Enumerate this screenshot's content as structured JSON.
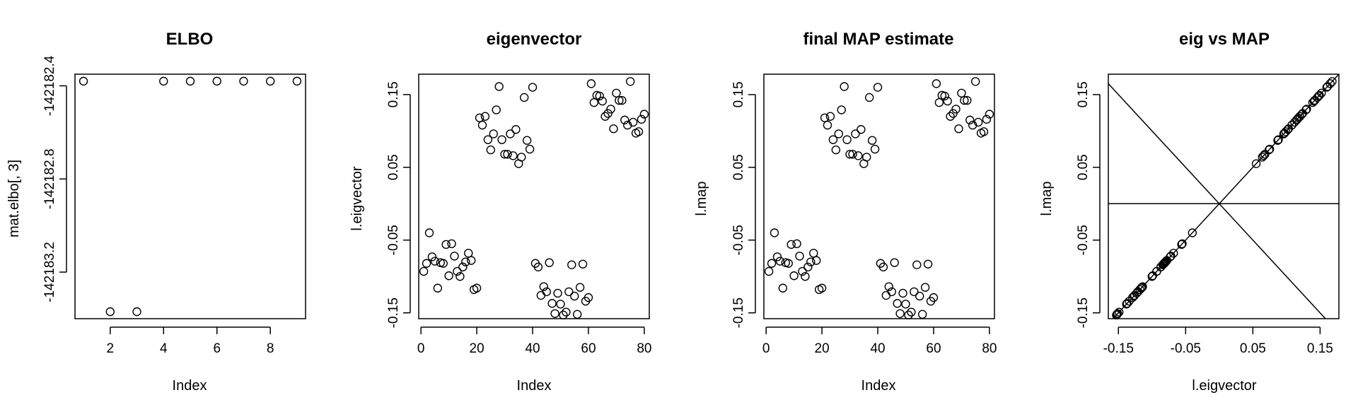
{
  "chart_data": [
    {
      "type": "scatter",
      "title": "ELBO",
      "xlabel": "Index",
      "ylabel": "mat.elbo[, 3]",
      "xlim": [
        0.68,
        9.32
      ],
      "ylim": [
        -142183.4,
        -142182.35
      ],
      "xticks": [
        2,
        4,
        6,
        8
      ],
      "xtick_labels": [
        "2",
        "4",
        "6",
        "8"
      ],
      "yticks": [
        -142183.2,
        -142182.8,
        -142182.4
      ],
      "ytick_labels": [
        "-142183.2",
        "-142182.8",
        "-142182.4"
      ],
      "x": [
        1,
        2,
        3,
        4,
        5,
        6,
        7,
        8,
        9
      ],
      "y": [
        -142182.38,
        -142183.37,
        -142183.37,
        -142182.38,
        -142182.38,
        -142182.38,
        -142182.38,
        -142182.38,
        -142182.38
      ]
    },
    {
      "type": "scatter",
      "title": "eigenvector",
      "xlabel": "Index",
      "ylabel": "l.eigvector",
      "xlim": [
        -0.8,
        81.8
      ],
      "ylim": [
        -0.158,
        0.178
      ],
      "xticks": [
        0,
        20,
        40,
        60,
        80
      ],
      "xtick_labels": [
        "0",
        "20",
        "40",
        "60",
        "80"
      ],
      "yticks": [
        -0.15,
        -0.05,
        0.05,
        0.15
      ],
      "ytick_labels": [
        "-0.15",
        "-0.05",
        "0.05",
        "0.15"
      ],
      "x": [
        1,
        2,
        3,
        4,
        5,
        6,
        7,
        8,
        9,
        10,
        11,
        12,
        13,
        14,
        15,
        16,
        17,
        18,
        19,
        20,
        21,
        22,
        23,
        24,
        25,
        26,
        27,
        28,
        29,
        30,
        31,
        32,
        33,
        34,
        35,
        36,
        37,
        38,
        39,
        40,
        41,
        42,
        43,
        44,
        45,
        46,
        47,
        48,
        49,
        50,
        51,
        52,
        53,
        54,
        55,
        56,
        57,
        58,
        59,
        60,
        61,
        62,
        63,
        64,
        65,
        66,
        67,
        68,
        69,
        70,
        71,
        72,
        73,
        74,
        75,
        76,
        77,
        78,
        79,
        80
      ],
      "y": [
        -0.093,
        -0.082,
        -0.04,
        -0.073,
        -0.079,
        -0.116,
        -0.081,
        -0.082,
        -0.056,
        -0.099,
        -0.055,
        -0.072,
        -0.093,
        -0.1,
        -0.087,
        -0.08,
        -0.068,
        -0.078,
        -0.118,
        -0.116,
        0.118,
        0.108,
        0.12,
        0.088,
        0.074,
        0.096,
        0.129,
        0.161,
        0.088,
        0.068,
        0.068,
        0.096,
        0.066,
        0.102,
        0.055,
        0.064,
        0.146,
        0.087,
        0.075,
        0.16,
        -0.082,
        -0.087,
        -0.126,
        -0.114,
        -0.121,
        -0.081,
        -0.137,
        -0.151,
        -0.123,
        -0.138,
        -0.153,
        -0.149,
        -0.121,
        -0.084,
        -0.127,
        -0.152,
        -0.115,
        -0.083,
        -0.134,
        -0.129,
        0.165,
        0.139,
        0.149,
        0.148,
        0.141,
        0.12,
        0.124,
        0.13,
        0.103,
        0.152,
        0.142,
        0.142,
        0.115,
        0.108,
        0.168,
        0.112,
        0.097,
        0.099,
        0.116,
        0.123
      ]
    },
    {
      "type": "scatter",
      "title": "final MAP estimate",
      "xlabel": "Index",
      "ylabel": "l.map",
      "xlim": [
        -0.8,
        81.8
      ],
      "ylim": [
        -0.158,
        0.178
      ],
      "xticks": [
        0,
        20,
        40,
        60,
        80
      ],
      "xtick_labels": [
        "0",
        "20",
        "40",
        "60",
        "80"
      ],
      "yticks": [
        -0.15,
        -0.05,
        0.05,
        0.15
      ],
      "ytick_labels": [
        "-0.15",
        "-0.05",
        "0.05",
        "0.15"
      ],
      "x": [
        1,
        2,
        3,
        4,
        5,
        6,
        7,
        8,
        9,
        10,
        11,
        12,
        13,
        14,
        15,
        16,
        17,
        18,
        19,
        20,
        21,
        22,
        23,
        24,
        25,
        26,
        27,
        28,
        29,
        30,
        31,
        32,
        33,
        34,
        35,
        36,
        37,
        38,
        39,
        40,
        41,
        42,
        43,
        44,
        45,
        46,
        47,
        48,
        49,
        50,
        51,
        52,
        53,
        54,
        55,
        56,
        57,
        58,
        59,
        60,
        61,
        62,
        63,
        64,
        65,
        66,
        67,
        68,
        69,
        70,
        71,
        72,
        73,
        74,
        75,
        76,
        77,
        78,
        79,
        80
      ],
      "y": [
        -0.093,
        -0.082,
        -0.04,
        -0.073,
        -0.079,
        -0.116,
        -0.081,
        -0.082,
        -0.056,
        -0.099,
        -0.055,
        -0.072,
        -0.093,
        -0.1,
        -0.087,
        -0.08,
        -0.068,
        -0.078,
        -0.118,
        -0.116,
        0.118,
        0.108,
        0.12,
        0.088,
        0.074,
        0.096,
        0.129,
        0.161,
        0.088,
        0.068,
        0.068,
        0.096,
        0.066,
        0.102,
        0.055,
        0.064,
        0.146,
        0.087,
        0.075,
        0.16,
        -0.082,
        -0.087,
        -0.126,
        -0.114,
        -0.121,
        -0.081,
        -0.137,
        -0.151,
        -0.123,
        -0.138,
        -0.153,
        -0.149,
        -0.121,
        -0.084,
        -0.127,
        -0.152,
        -0.115,
        -0.083,
        -0.134,
        -0.129,
        0.165,
        0.139,
        0.149,
        0.148,
        0.141,
        0.12,
        0.124,
        0.13,
        0.103,
        0.152,
        0.142,
        0.142,
        0.115,
        0.108,
        0.168,
        0.112,
        0.097,
        0.099,
        0.116,
        0.123
      ]
    },
    {
      "type": "scatter",
      "title": "eig vs MAP",
      "xlabel": "l.eigvector",
      "ylabel": "l.map",
      "xlim": [
        -0.165,
        0.178
      ],
      "ylim": [
        -0.158,
        0.178
      ],
      "xticks": [
        -0.15,
        -0.05,
        0.05,
        0.15
      ],
      "xtick_labels": [
        "-0.15",
        "-0.05",
        "0.05",
        "0.15"
      ],
      "yticks": [
        -0.15,
        -0.05,
        0.05,
        0.15
      ],
      "ytick_labels": [
        "-0.15",
        "-0.05",
        "0.05",
        "0.15"
      ],
      "x": [
        -0.093,
        -0.082,
        -0.04,
        -0.073,
        -0.079,
        -0.116,
        -0.081,
        -0.082,
        -0.056,
        -0.099,
        -0.055,
        -0.072,
        -0.093,
        -0.1,
        -0.087,
        -0.08,
        -0.068,
        -0.078,
        -0.118,
        -0.116,
        0.118,
        0.108,
        0.12,
        0.088,
        0.074,
        0.096,
        0.129,
        0.161,
        0.088,
        0.068,
        0.068,
        0.096,
        0.066,
        0.102,
        0.055,
        0.064,
        0.146,
        0.087,
        0.075,
        0.16,
        -0.082,
        -0.087,
        -0.126,
        -0.114,
        -0.121,
        -0.081,
        -0.137,
        -0.151,
        -0.123,
        -0.138,
        -0.153,
        -0.149,
        -0.121,
        -0.084,
        -0.127,
        -0.152,
        -0.115,
        -0.083,
        -0.134,
        -0.129,
        0.165,
        0.139,
        0.149,
        0.148,
        0.141,
        0.12,
        0.124,
        0.13,
        0.103,
        0.152,
        0.142,
        0.142,
        0.115,
        0.108,
        0.168,
        0.112,
        0.097,
        0.099,
        0.116,
        0.123
      ],
      "y": [
        -0.093,
        -0.082,
        -0.04,
        -0.073,
        -0.079,
        -0.116,
        -0.081,
        -0.082,
        -0.056,
        -0.099,
        -0.055,
        -0.072,
        -0.093,
        -0.1,
        -0.087,
        -0.08,
        -0.068,
        -0.078,
        -0.118,
        -0.116,
        0.118,
        0.108,
        0.12,
        0.088,
        0.074,
        0.096,
        0.129,
        0.161,
        0.088,
        0.068,
        0.068,
        0.096,
        0.066,
        0.102,
        0.055,
        0.064,
        0.146,
        0.087,
        0.075,
        0.16,
        -0.082,
        -0.087,
        -0.126,
        -0.114,
        -0.121,
        -0.081,
        -0.137,
        -0.151,
        -0.123,
        -0.138,
        -0.153,
        -0.149,
        -0.121,
        -0.084,
        -0.127,
        -0.152,
        -0.115,
        -0.083,
        -0.134,
        -0.129,
        0.165,
        0.139,
        0.149,
        0.148,
        0.141,
        0.12,
        0.124,
        0.13,
        0.103,
        0.152,
        0.142,
        0.142,
        0.115,
        0.108,
        0.168,
        0.112,
        0.097,
        0.099,
        0.116,
        0.123
      ],
      "reference_lines": [
        {
          "type": "abline",
          "intercept": 0,
          "slope": 1
        },
        {
          "type": "abline",
          "intercept": 0,
          "slope": -1
        },
        {
          "type": "hline",
          "y": 0
        }
      ]
    }
  ]
}
